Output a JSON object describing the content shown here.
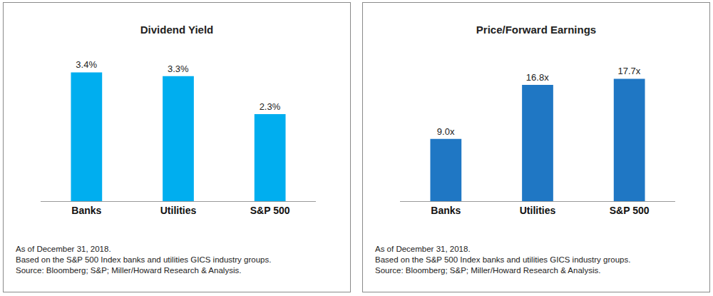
{
  "chart_data": [
    {
      "type": "bar",
      "title": "Dividend Yield",
      "categories": [
        "Banks",
        "Utilities",
        "S&P 500"
      ],
      "values": [
        3.4,
        3.3,
        2.3
      ],
      "value_labels": [
        "3.4%",
        "3.3%",
        "2.3%"
      ],
      "color": "#00aeef",
      "ylim": [
        0,
        4.2
      ],
      "grid": false,
      "data_labels": true,
      "tick_labels": "x",
      "annotations": [
        "As of December 31, 2018.",
        "Based on the S&P 500 Index banks and utilities GICS industry groups.",
        "Source: Bloomberg; S&P; Miller/Howard Research & Analysis."
      ]
    },
    {
      "type": "bar",
      "title": "Price/Forward Earnings",
      "categories": [
        "Banks",
        "Utilities",
        "S&P 500"
      ],
      "values": [
        9.0,
        16.8,
        17.7
      ],
      "value_labels": [
        "9.0x",
        "16.8x",
        "17.7x"
      ],
      "color": "#1f77c4",
      "ylim": [
        0,
        23
      ],
      "grid": false,
      "data_labels": true,
      "tick_labels": "x",
      "annotations": [
        "As of December 31, 2018.",
        "Based on the S&P 500 Index banks and utilities GICS industry groups.",
        "Source: Bloomberg; S&P; Miller/Howard Research & Analysis."
      ]
    }
  ]
}
